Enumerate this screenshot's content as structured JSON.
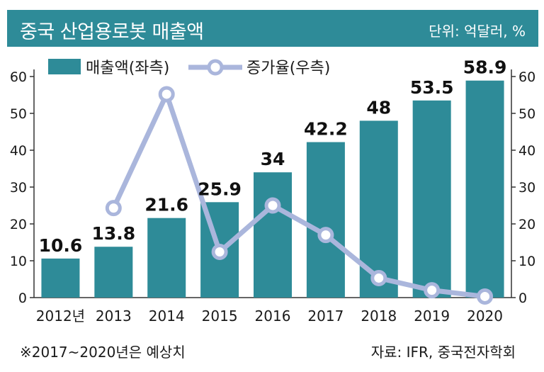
{
  "header": {
    "title": "중국 산업용로봇 매출액",
    "unit": "단위: 억달러, %"
  },
  "footer": {
    "note": "※2017~2020년은 예상치",
    "source": "자료: IFR, 중국전자학회"
  },
  "colors": {
    "bar": "#2e8b98",
    "line": "#aab6dc",
    "marker_fill": "#ffffff",
    "header_bg": "#2e8b98"
  },
  "chart_data": {
    "type": "bar",
    "categories": [
      "2012년",
      "2013",
      "2014",
      "2015",
      "2016",
      "2017",
      "2018",
      "2019",
      "2020"
    ],
    "series": [
      {
        "name": "매출액(좌측)",
        "type": "bar",
        "axis": "left",
        "values": [
          10.6,
          13.8,
          21.6,
          25.9,
          34,
          42.2,
          48,
          53.5,
          58.9
        ],
        "labels": [
          "10.6",
          "13.8",
          "21.6",
          "25.9",
          "34",
          "42.2",
          "48",
          "53.5",
          "58.9"
        ]
      },
      {
        "name": "증가율(우측)",
        "type": "line",
        "axis": "right",
        "values": [
          null,
          24.3,
          55.2,
          12.4,
          25.0,
          17.0,
          5.3,
          2.0,
          0.3
        ]
      }
    ],
    "ylim": [
      0,
      60
    ],
    "y2lim": [
      0,
      60
    ],
    "yticks": [
      "0",
      "10",
      "20",
      "30",
      "40",
      "50",
      "60"
    ],
    "y2ticks": [
      "0",
      "10",
      "20",
      "30",
      "40",
      "50",
      "60"
    ],
    "legend_position": "top-left",
    "grid": false
  }
}
